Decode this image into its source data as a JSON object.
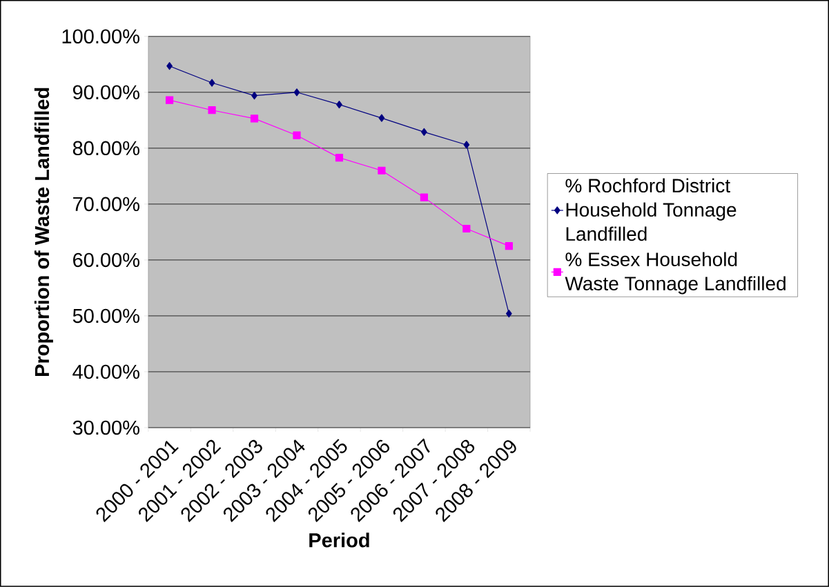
{
  "chart_data": {
    "type": "line",
    "xlabel": "Period",
    "ylabel": "Proportion of Waste Landfilled",
    "categories": [
      "2000 - 2001",
      "2001 - 2002",
      "2002 - 2003",
      "2003 - 2004",
      "2004 - 2005",
      "2005 - 2006",
      "2006 - 2007",
      "2007 - 2008",
      "2008 - 2009"
    ],
    "series": [
      {
        "name": "% Rochford District Household Tonnage Landfilled",
        "color": "#000080",
        "marker": "diamond",
        "values": [
          94.7,
          91.7,
          89.4,
          90.0,
          87.8,
          85.4,
          82.9,
          80.6,
          50.4
        ]
      },
      {
        "name": "% Essex Household Waste Tonnage Landfilled",
        "color": "#ff00ff",
        "marker": "square",
        "values": [
          88.6,
          86.8,
          85.3,
          82.3,
          78.3,
          76.0,
          71.2,
          65.6,
          62.5
        ]
      }
    ],
    "ylim": [
      30,
      100
    ],
    "yticks": [
      {
        "value": 30,
        "label": "30.00%"
      },
      {
        "value": 40,
        "label": "40.00%"
      },
      {
        "value": 50,
        "label": "50.00%"
      },
      {
        "value": 60,
        "label": "60.00%"
      },
      {
        "value": 70,
        "label": "70.00%"
      },
      {
        "value": 80,
        "label": "80.00%"
      },
      {
        "value": 90,
        "label": "90.00%"
      },
      {
        "value": 100,
        "label": "100.00%"
      }
    ],
    "grid": "y",
    "legend": "right"
  }
}
